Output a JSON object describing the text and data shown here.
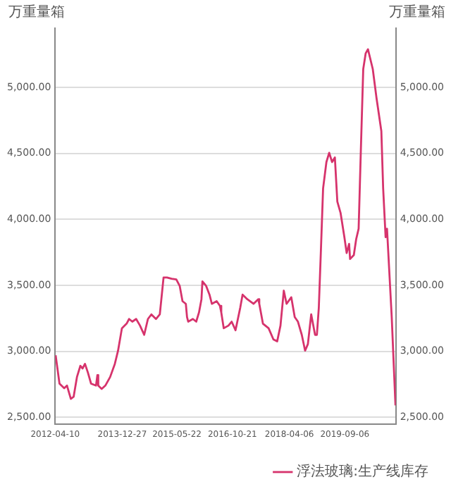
{
  "chart_data": {
    "type": "line",
    "ylabel": "万重量箱",
    "y2label": "万重量箱",
    "x": [
      "2012-04-14",
      "2012-05-20",
      "2012-07-03",
      "2012-07-29",
      "2012-09-03",
      "2012-09-29",
      "2012-10-30",
      "2012-12-01",
      "2012-12-22",
      "2013-01-13",
      "2013-02-09",
      "2013-03-11",
      "2013-04-26",
      "2013-05-09",
      "2013-05-17",
      "2013-06-18",
      "2013-07-22",
      "2013-09-05",
      "2013-10-19",
      "2013-11-18",
      "2013-12-24",
      "2014-02-06",
      "2014-03-01",
      "2014-03-31",
      "2014-05-06",
      "2014-06-11",
      "2014-07-20",
      "2014-08-24",
      "2014-09-25",
      "2014-11-07",
      "2014-12-13",
      "2015-01-17",
      "2015-02-18",
      "2015-04-02",
      "2015-05-16",
      "2015-06-17",
      "2015-07-13",
      "2015-08-13",
      "2015-08-24",
      "2015-09-04",
      "2015-10-18",
      "2015-11-18",
      "2015-12-14",
      "2016-01-06",
      "2016-01-15",
      "2016-02-19",
      "2016-03-21",
      "2016-04-12",
      "2016-05-27",
      "2016-06-26",
      "2016-07-09",
      "2016-08-01",
      "2016-09-14",
      "2016-10-14",
      "2016-11-19",
      "2017-01-02",
      "2017-01-24",
      "2017-03-09",
      "2017-05-06",
      "2017-06-19",
      "2017-06-29",
      "2017-08-02",
      "2017-09-24",
      "2017-11-08",
      "2017-12-13",
      "2018-01-13",
      "2018-02-13",
      "2018-03-11",
      "2018-04-24",
      "2018-05-26",
      "2018-06-25",
      "2018-07-31",
      "2018-08-31",
      "2018-09-26",
      "2018-10-27",
      "2018-12-02",
      "2018-12-19",
      "2019-01-06",
      "2019-01-24",
      "2019-02-15",
      "2019-03-18",
      "2019-04-13",
      "2019-05-10",
      "2019-06-05",
      "2019-06-28",
      "2019-07-28",
      "2019-09-02",
      "2019-09-23",
      "2019-10-16",
      "2019-10-25",
      "2019-11-29",
      "2019-12-21",
      "2020-01-13",
      "2020-02-03",
      "2020-02-25",
      "2020-03-19",
      "2020-04-09",
      "2020-05-24",
      "2020-06-28",
      "2020-08-12",
      "2020-08-29",
      "2020-09-21",
      "2020-10-04",
      "2020-11-17",
      "2020-12-22"
    ],
    "series": [
      {
        "name": "浮法玻璃:生产线库存",
        "color": "#d6336c",
        "values": [
          2970,
          2755,
          2720,
          2740,
          2640,
          2655,
          2805,
          2890,
          2870,
          2905,
          2840,
          2755,
          2740,
          2820,
          2740,
          2715,
          2740,
          2805,
          2905,
          3005,
          3175,
          3210,
          3245,
          3225,
          3245,
          3195,
          3125,
          3245,
          3280,
          3245,
          3280,
          3560,
          3560,
          3550,
          3545,
          3495,
          3380,
          3360,
          3260,
          3225,
          3245,
          3225,
          3295,
          3395,
          3530,
          3495,
          3430,
          3360,
          3380,
          3345,
          3295,
          3175,
          3195,
          3225,
          3160,
          3330,
          3430,
          3395,
          3360,
          3395,
          3360,
          3210,
          3175,
          3090,
          3075,
          3195,
          3460,
          3360,
          3410,
          3260,
          3225,
          3125,
          3005,
          3055,
          3280,
          3125,
          3125,
          3330,
          3730,
          4235,
          4435,
          4505,
          4435,
          4470,
          4135,
          4050,
          3865,
          3745,
          3815,
          3700,
          3730,
          3850,
          3930,
          4535,
          5140,
          5260,
          5290,
          5140,
          4920,
          4670,
          4235,
          3865,
          3930,
          3260,
          2590
        ]
      }
    ],
    "xlim": [
      "2012-04-10",
      "2020-12-25"
    ],
    "xticks": [
      "2012-04-10",
      "2013-12-27",
      "2015-05-22",
      "2016-10-21",
      "2018-04-06",
      "2019-09-06"
    ],
    "ylim": [
      2450,
      5450
    ],
    "yticks": [
      {
        "value": 2500,
        "label": "2,500.00"
      },
      {
        "value": 3000,
        "label": "3,000.00"
      },
      {
        "value": 3500,
        "label": "3,500.00"
      },
      {
        "value": 4000,
        "label": "4,000.00"
      },
      {
        "value": 4500,
        "label": "4,500.00"
      },
      {
        "value": 5000,
        "label": "5,000.00"
      }
    ],
    "y2lim": [
      2450,
      5450
    ],
    "y2ticks": [
      {
        "value": 2500,
        "label": "2,500.00"
      },
      {
        "value": 3000,
        "label": "3,000.00"
      },
      {
        "value": 3500,
        "label": "3,500.00"
      },
      {
        "value": 4000,
        "label": "4,000.00"
      },
      {
        "value": 4500,
        "label": "4,500.00"
      },
      {
        "value": 5000,
        "label": "5,000.00"
      }
    ],
    "grid": "y",
    "legend": "bottom right",
    "marker": "none",
    "line_style": "solid"
  }
}
